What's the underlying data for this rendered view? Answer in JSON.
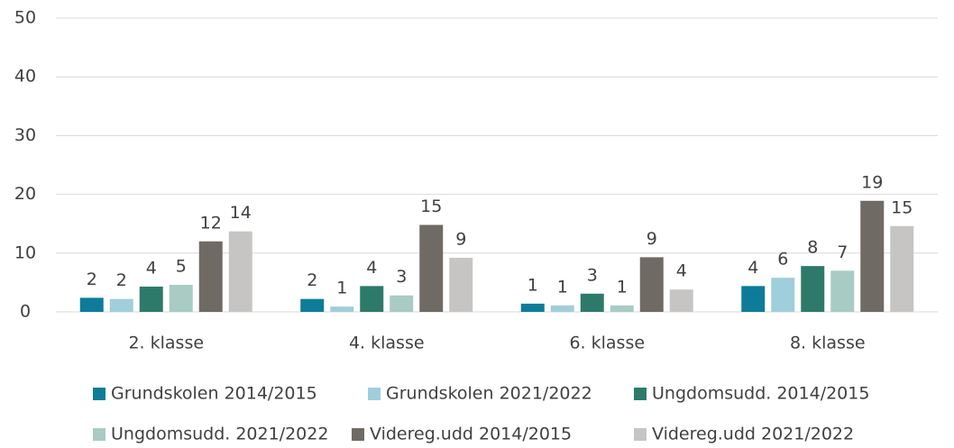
{
  "chart_data": {
    "type": "bar",
    "categories": [
      "2. klasse",
      "4. klasse",
      "6. klasse",
      "8. klasse"
    ],
    "series": [
      {
        "name": "Grundskolen 2014/2015",
        "color": "#0e7c99",
        "values": [
          2.4,
          2.2,
          1.4,
          4.4
        ],
        "value_labels": [
          "2",
          "2",
          "1",
          "4"
        ]
      },
      {
        "name": "Grundskolen 2021/2022",
        "color": "#9fcfda",
        "values": [
          2.2,
          0.9,
          1.1,
          5.8
        ],
        "value_labels": [
          "2",
          "1",
          "1",
          "6"
        ]
      },
      {
        "name": "Ungdomsudd. 2014/2015",
        "color": "#2e7a6a",
        "values": [
          4.3,
          4.4,
          3.1,
          7.8
        ],
        "value_labels": [
          "4",
          "4",
          "3",
          "8"
        ]
      },
      {
        "name": "Ungdomsudd. 2021/2022",
        "color": "#a8cbc3",
        "values": [
          4.6,
          2.8,
          1.1,
          7.0
        ],
        "value_labels": [
          "5",
          "3",
          "1",
          "7"
        ]
      },
      {
        "name": "Videreg.udd 2014/2015",
        "color": "#706a65",
        "values": [
          12.0,
          14.8,
          9.3,
          18.9
        ],
        "value_labels": [
          "12",
          "15",
          "9",
          "19"
        ]
      },
      {
        "name": "Videreg.udd 2021/2022",
        "color": "#c6c5c3",
        "values": [
          13.7,
          9.2,
          3.8,
          14.6
        ],
        "value_labels": [
          "14",
          "9",
          "4",
          "15"
        ]
      }
    ],
    "ylim": [
      0,
      50
    ],
    "yticks": [
      0,
      10,
      20,
      30,
      40,
      50
    ],
    "grid": true
  }
}
